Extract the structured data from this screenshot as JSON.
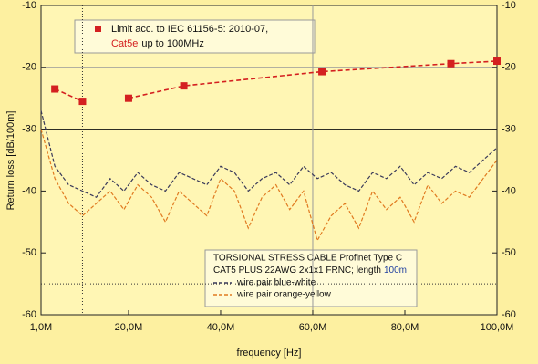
{
  "chart_data": {
    "type": "line",
    "xlabel": "frequency [Hz]",
    "ylabel": "Return loss [dB/100m]",
    "xlim": [
      1000000,
      100000000
    ],
    "ylim": [
      -60,
      -10
    ],
    "xticks": [
      {
        "value": 1000000,
        "label": "1,0M"
      },
      {
        "value": 20000000,
        "label": "20,0M"
      },
      {
        "value": 40000000,
        "label": "40,0M"
      },
      {
        "value": 60000000,
        "label": "60,0M"
      },
      {
        "value": 80000000,
        "label": "80,0M"
      },
      {
        "value": 100000000,
        "label": "100,0M"
      }
    ],
    "yticks": [
      -10,
      -20,
      -30,
      -40,
      -50,
      -60
    ],
    "hlines": [
      -20,
      -30,
      -55
    ],
    "vlines": [
      10000000,
      60000000
    ],
    "limit_note_label": "Cat5e",
    "limit_note": "up to 100MHz",
    "cable_title": "TORSIONAL STRESS CABLE Profinet Type C",
    "cable_desc": "CAT5 PLUS 22AWG 2x1x1 FRNC; length",
    "cable_length": "100m",
    "series": [
      {
        "name": "Limit acc. to IEC 61156-5: 2010-07,",
        "color": "#d42020",
        "markers": true,
        "x": [
          4000000,
          10000000,
          15000000,
          20000000,
          32000000,
          62000000,
          90000000,
          100000000
        ],
        "values": [
          -23.5,
          -25.5,
          null,
          -25,
          -23,
          -20.7,
          -19.4,
          -19
        ]
      },
      {
        "name": "wire pair blue-white",
        "color": "#3a3a5a",
        "markers": false,
        "x": [
          1000000,
          4000000,
          7000000,
          10000000,
          13000000,
          16000000,
          19000000,
          22000000,
          25000000,
          28000000,
          31000000,
          34000000,
          37000000,
          40000000,
          43000000,
          46000000,
          49000000,
          52000000,
          55000000,
          58000000,
          61000000,
          64000000,
          67000000,
          70000000,
          73000000,
          76000000,
          79000000,
          82000000,
          85000000,
          88000000,
          91000000,
          94000000,
          97000000,
          100000000
        ],
        "values": [
          -27,
          -36,
          -39,
          -40,
          -41,
          -38,
          -40,
          -37,
          -39,
          -40,
          -37,
          -38,
          -39,
          -36,
          -37,
          -40,
          -38,
          -37,
          -39,
          -36,
          -38,
          -37,
          -39,
          -40,
          -37,
          -38,
          -36,
          -39,
          -37,
          -38,
          -36,
          -37,
          -35,
          -33
        ]
      },
      {
        "name": "wire pair orange-yellow",
        "color": "#e07a20",
        "markers": false,
        "x": [
          1000000,
          4000000,
          7000000,
          10000000,
          13000000,
          16000000,
          19000000,
          22000000,
          25000000,
          28000000,
          31000000,
          34000000,
          37000000,
          40000000,
          43000000,
          46000000,
          49000000,
          52000000,
          55000000,
          58000000,
          61000000,
          64000000,
          67000000,
          70000000,
          73000000,
          76000000,
          79000000,
          82000000,
          85000000,
          88000000,
          91000000,
          94000000,
          97000000,
          100000000
        ],
        "values": [
          -30,
          -38,
          -42,
          -44,
          -42,
          -40,
          -43,
          -39,
          -41,
          -45,
          -40,
          -42,
          -44,
          -38,
          -40,
          -46,
          -41,
          -39,
          -43,
          -40,
          -48,
          -44,
          -42,
          -46,
          -40,
          -43,
          -41,
          -45,
          -39,
          -42,
          -40,
          -41,
          -38,
          -35
        ]
      }
    ]
  }
}
